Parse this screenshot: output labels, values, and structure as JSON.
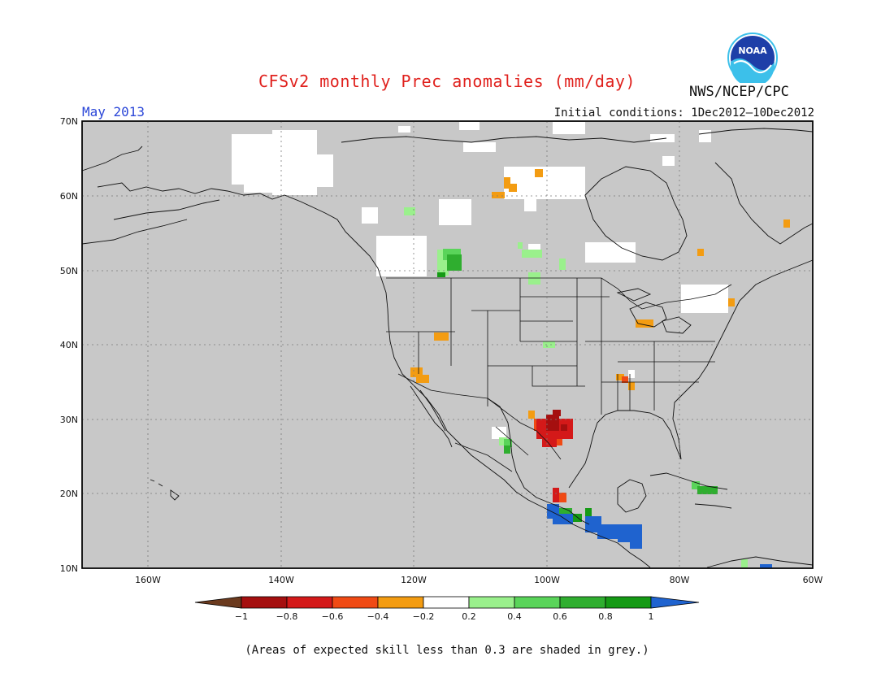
{
  "title": "CFSv2 monthly Prec anomalies (mm/day)",
  "organization": "NWS/NCEP/CPC",
  "month": "May 2013",
  "initial_conditions": "Initial conditions: 1Dec2012—10Dec2012",
  "footnote": "(Areas of expected skill less than 0.3 are shaded in grey.)",
  "logo_text": "NOAA",
  "lat_labels": [
    "70N",
    "60N",
    "50N",
    "40N",
    "30N",
    "20N",
    "10N"
  ],
  "lon_labels": [
    "160W",
    "140W",
    "120W",
    "100W",
    "80W",
    "60W"
  ],
  "colorbar": {
    "labels": [
      "−1",
      "−0.8",
      "−0.6",
      "−0.4",
      "−0.2",
      "0.2",
      "0.4",
      "0.6",
      "0.8",
      "1"
    ],
    "colors": [
      "#6b3a1e",
      "#a50f0f",
      "#d41919",
      "#f04a14",
      "#f39c12",
      "#ffffff",
      "#9af08c",
      "#5ad45a",
      "#2fae2f",
      "#159a15",
      "#1f63cf"
    ]
  },
  "colors": {
    "map_background": "#c8c8c8",
    "grid": "#7a7a7a",
    "coast": "#111111"
  }
}
